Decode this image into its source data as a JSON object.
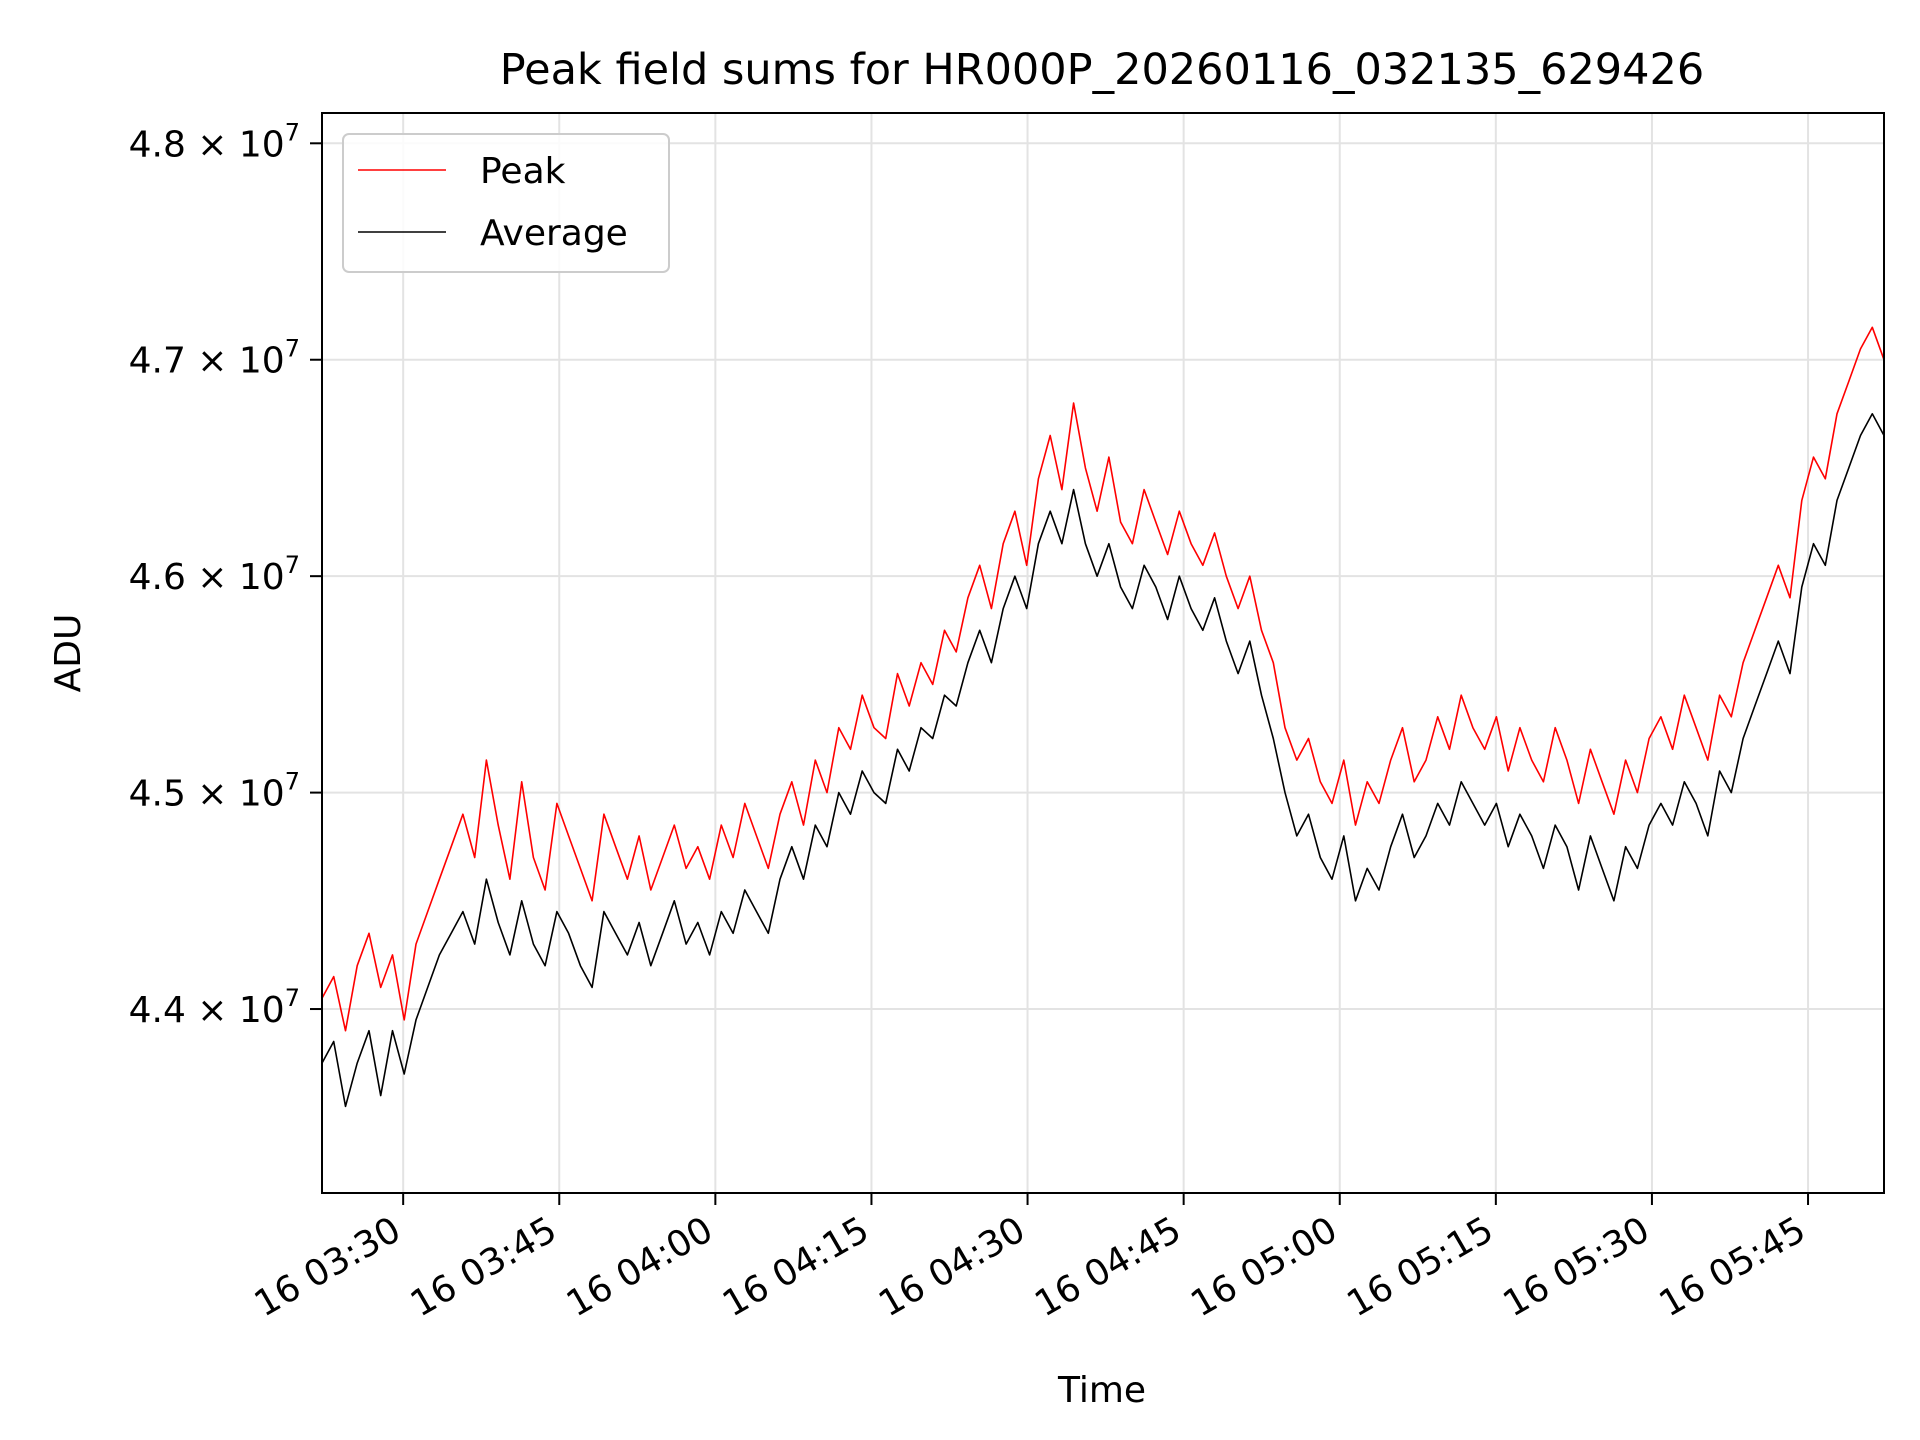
{
  "chart_data": {
    "type": "line",
    "title": "Peak field sums for HR000P_20260116_032135_629426",
    "xlabel": "Time",
    "ylabel": "ADU",
    "grid": true,
    "legend_position": "top-left",
    "x_start_minutes": 201.5,
    "x_end_minutes": 351.6,
    "xlim": [
      201.5,
      351.6
    ],
    "ylim": [
      43150000,
      48140000
    ],
    "x_ticks": [
      {
        "value": 209.3,
        "label": "16 03:30"
      },
      {
        "value": 224.3,
        "label": "16 03:45"
      },
      {
        "value": 239.3,
        "label": "16 04:00"
      },
      {
        "value": 254.3,
        "label": "16 04:15"
      },
      {
        "value": 269.3,
        "label": "16 04:30"
      },
      {
        "value": 284.3,
        "label": "16 04:45"
      },
      {
        "value": 299.3,
        "label": "16 05:00"
      },
      {
        "value": 314.3,
        "label": "16 05:15"
      },
      {
        "value": 329.3,
        "label": "16 05:30"
      },
      {
        "value": 344.3,
        "label": "16 05:45"
      }
    ],
    "y_ticks": [
      {
        "value": 44000000,
        "mantissa": "4.4",
        "base": "10",
        "exponent": "7"
      },
      {
        "value": 45000000,
        "mantissa": "4.5",
        "base": "10",
        "exponent": "7"
      },
      {
        "value": 46000000,
        "mantissa": "4.6",
        "base": "10",
        "exponent": "7"
      },
      {
        "value": 47000000,
        "mantissa": "4.7",
        "base": "10",
        "exponent": "7"
      },
      {
        "value": 48000000,
        "mantissa": "4.8",
        "base": "10",
        "exponent": "7"
      }
    ],
    "series": [
      {
        "name": "Peak",
        "color": "#ff0000",
        "values": [
          44050000,
          44150000,
          43900000,
          44200000,
          44350000,
          44100000,
          44250000,
          43950000,
          44300000,
          44450000,
          44600000,
          44750000,
          44900000,
          44700000,
          45150000,
          44850000,
          44600000,
          45050000,
          44700000,
          44550000,
          44950000,
          44800000,
          44650000,
          44500000,
          44900000,
          44750000,
          44600000,
          44800000,
          44550000,
          44700000,
          44850000,
          44650000,
          44750000,
          44600000,
          44850000,
          44700000,
          44950000,
          44800000,
          44650000,
          44900000,
          45050000,
          44850000,
          45150000,
          45000000,
          45300000,
          45200000,
          45450000,
          45300000,
          45250000,
          45550000,
          45400000,
          45600000,
          45500000,
          45750000,
          45650000,
          45900000,
          46050000,
          45850000,
          46150000,
          46300000,
          46050000,
          46450000,
          46650000,
          46400000,
          46800000,
          46500000,
          46300000,
          46550000,
          46250000,
          46150000,
          46400000,
          46250000,
          46100000,
          46300000,
          46150000,
          46050000,
          46200000,
          46000000,
          45850000,
          46000000,
          45750000,
          45600000,
          45300000,
          45150000,
          45250000,
          45050000,
          44950000,
          45150000,
          44850000,
          45050000,
          44950000,
          45150000,
          45300000,
          45050000,
          45150000,
          45350000,
          45200000,
          45450000,
          45300000,
          45200000,
          45350000,
          45100000,
          45300000,
          45150000,
          45050000,
          45300000,
          45150000,
          44950000,
          45200000,
          45050000,
          44900000,
          45150000,
          45000000,
          45250000,
          45350000,
          45200000,
          45450000,
          45300000,
          45150000,
          45450000,
          45350000,
          45600000,
          45750000,
          45900000,
          46050000,
          45900000,
          46350000,
          46550000,
          46450000,
          46750000,
          46900000,
          47050000,
          47150000,
          47000000
        ]
      },
      {
        "name": "Average",
        "color": "#000000",
        "values": [
          43750000,
          43850000,
          43550000,
          43750000,
          43900000,
          43600000,
          43900000,
          43700000,
          43950000,
          44100000,
          44250000,
          44350000,
          44450000,
          44300000,
          44600000,
          44400000,
          44250000,
          44500000,
          44300000,
          44200000,
          44450000,
          44350000,
          44200000,
          44100000,
          44450000,
          44350000,
          44250000,
          44400000,
          44200000,
          44350000,
          44500000,
          44300000,
          44400000,
          44250000,
          44450000,
          44350000,
          44550000,
          44450000,
          44350000,
          44600000,
          44750000,
          44600000,
          44850000,
          44750000,
          45000000,
          44900000,
          45100000,
          45000000,
          44950000,
          45200000,
          45100000,
          45300000,
          45250000,
          45450000,
          45400000,
          45600000,
          45750000,
          45600000,
          45850000,
          46000000,
          45850000,
          46150000,
          46300000,
          46150000,
          46400000,
          46150000,
          46000000,
          46150000,
          45950000,
          45850000,
          46050000,
          45950000,
          45800000,
          46000000,
          45850000,
          45750000,
          45900000,
          45700000,
          45550000,
          45700000,
          45450000,
          45250000,
          45000000,
          44800000,
          44900000,
          44700000,
          44600000,
          44800000,
          44500000,
          44650000,
          44550000,
          44750000,
          44900000,
          44700000,
          44800000,
          44950000,
          44850000,
          45050000,
          44950000,
          44850000,
          44950000,
          44750000,
          44900000,
          44800000,
          44650000,
          44850000,
          44750000,
          44550000,
          44800000,
          44650000,
          44500000,
          44750000,
          44650000,
          44850000,
          44950000,
          44850000,
          45050000,
          44950000,
          44800000,
          45100000,
          45000000,
          45250000,
          45400000,
          45550000,
          45700000,
          45550000,
          45950000,
          46150000,
          46050000,
          46350000,
          46500000,
          46650000,
          46750000,
          46650000
        ]
      }
    ]
  }
}
